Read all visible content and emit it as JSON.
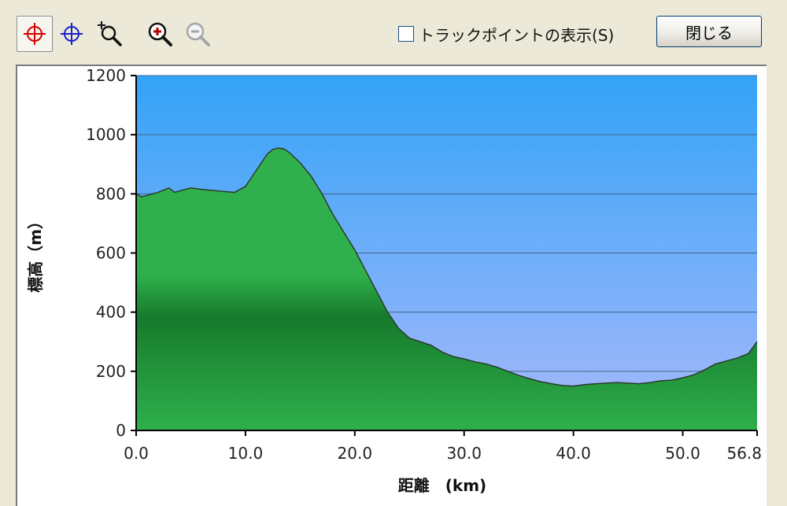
{
  "toolbar": {
    "icons": [
      "crosshair-red-icon",
      "crosshair-blue-icon",
      "zoom-reset-icon",
      "zoom-in-icon",
      "zoom-out-icon"
    ],
    "trackpoint_label": "トラックポイントの表示(S)",
    "close_label": "閉じる"
  },
  "colors": {
    "sky_top": "#33a3f7",
    "sky_bottom": "#a9b9fb",
    "terrain_light": "#2fb04c",
    "terrain_dark": "#167a2c",
    "grid": "#3f6a8c"
  },
  "chart_data": {
    "type": "area",
    "xlabel": "距離　(km)",
    "ylabel": "標高（m）",
    "xlim": [
      0,
      56.8
    ],
    "ylim": [
      0,
      1200
    ],
    "x_ticks": [
      {
        "value": 0,
        "label": "0.0"
      },
      {
        "value": 10,
        "label": "10.0"
      },
      {
        "value": 20,
        "label": "20.0"
      },
      {
        "value": 30,
        "label": "30.0"
      },
      {
        "value": 40,
        "label": "40.0"
      },
      {
        "value": 50,
        "label": "50.0"
      },
      {
        "value": 56.8,
        "label": "56.8"
      }
    ],
    "y_ticks": [
      {
        "value": 0,
        "label": "0"
      },
      {
        "value": 200,
        "label": "200"
      },
      {
        "value": 400,
        "label": "400"
      },
      {
        "value": 600,
        "label": "600"
      },
      {
        "value": 800,
        "label": "800"
      },
      {
        "value": 1000,
        "label": "1000"
      },
      {
        "value": 1200,
        "label": "1200"
      }
    ],
    "grid": true,
    "series": [
      {
        "x": [
          0,
          0.5,
          1,
          2,
          3,
          3.5,
          4,
          5,
          6,
          7,
          8,
          9,
          10,
          11,
          12,
          12.5,
          13,
          13.5,
          14,
          15,
          16,
          17,
          18,
          19,
          20,
          21,
          22,
          23,
          24,
          25,
          26,
          27,
          28,
          29,
          30,
          31,
          32,
          33,
          34,
          35,
          36,
          37,
          38,
          39,
          40,
          41,
          42,
          43,
          44,
          45,
          46,
          47,
          48,
          49,
          50,
          51,
          52,
          53,
          54,
          55,
          56,
          56.8
        ],
        "y": [
          800,
          790,
          795,
          805,
          820,
          805,
          810,
          820,
          815,
          812,
          808,
          805,
          825,
          880,
          935,
          950,
          955,
          952,
          940,
          905,
          860,
          800,
          730,
          670,
          610,
          540,
          470,
          400,
          345,
          312,
          300,
          288,
          265,
          250,
          242,
          232,
          225,
          214,
          200,
          186,
          175,
          165,
          158,
          152,
          150,
          155,
          158,
          160,
          162,
          160,
          158,
          162,
          168,
          170,
          178,
          188,
          205,
          225,
          235,
          245,
          260,
          300
        ]
      }
    ]
  }
}
